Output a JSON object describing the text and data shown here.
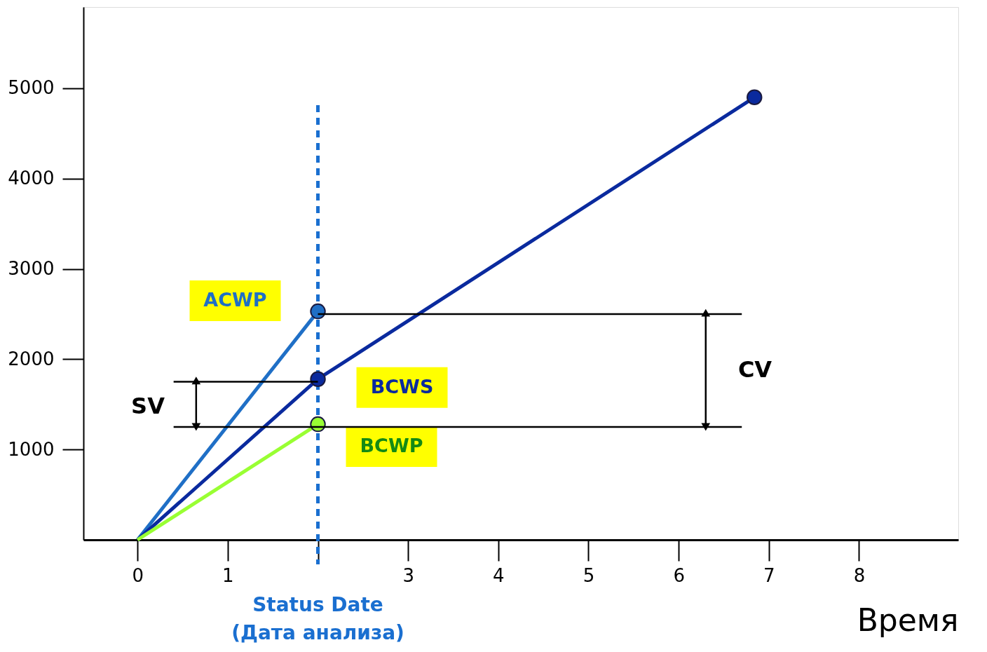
{
  "chart_data": {
    "type": "line",
    "series": [
      {
        "name": "ACWP",
        "color": "#1f6fc6",
        "x": [
          0,
          2
        ],
        "values": [
          0,
          2530
        ],
        "marker": "circle"
      },
      {
        "name": "BCWS",
        "color": "#0a2a9e",
        "x": [
          0,
          2,
          6.84
        ],
        "values": [
          0,
          1780,
          4900
        ],
        "marker": "circle"
      },
      {
        "name": "BCWP",
        "color": "#99ff33",
        "x": [
          0,
          2
        ],
        "values": [
          0,
          1280
        ],
        "marker": "circle"
      },
      {
        "color": "#000000",
        "x": [
          0.4,
          2
        ],
        "values": [
          1750,
          1750
        ]
      },
      {
        "color": "#000000",
        "x": [
          0.4,
          6.7
        ],
        "values": [
          1250,
          1250
        ]
      },
      {
        "color": "#000000",
        "x": [
          2,
          6.7
        ],
        "values": [
          2500,
          2500
        ]
      },
      {
        "color": "#000000",
        "x": [
          0.65,
          0.65
        ],
        "values": [
          1250,
          1750
        ],
        "marker": "triangle"
      },
      {
        "color": "#000000",
        "x": [
          6.3,
          6.3
        ],
        "values": [
          1250,
          2500
        ],
        "marker": "triangle"
      }
    ],
    "xlim": [
      -0.6,
      9.1
    ],
    "ylim": [
      0,
      5900
    ],
    "xticks": [
      0,
      1,
      {
        "value": 2,
        "label": null
      },
      3,
      4,
      5,
      6,
      7,
      8
    ],
    "yticks": [
      1000,
      2000,
      3000,
      4000,
      5000
    ],
    "xlabel": "Время",
    "ref_lines": [
      {
        "axis": "x",
        "value": 2,
        "label": "Status Date\n(Дата анализа)",
        "color": "#1a6fd0",
        "line_style": "dashed"
      }
    ],
    "annotations": [
      "SV",
      "CV"
    ],
    "legend": false,
    "grid": false
  }
}
